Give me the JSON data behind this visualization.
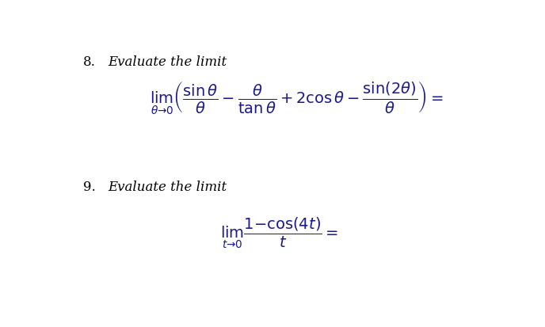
{
  "background_color": "#ffffff",
  "q8_number": "8.",
  "q8_label": "Evaluate the limit",
  "q8_formula": "$\\lim_{\\theta \\to 0} \\left( \\dfrac{\\sin\\theta}{\\theta} - \\dfrac{\\theta}{\\tan\\theta} + 2\\cos\\theta - \\dfrac{\\sin(2\\theta)}{\\theta} \\right) =$",
  "q9_number": "9.",
  "q9_label": "Evaluate the limit",
  "q9_formula": "$\\lim_{t \\to 0} \\dfrac{1 - \\cos(4t)}{t} =$",
  "text_color": "#1a1a8c",
  "label_color": "#000000",
  "number_color": "#000000",
  "fontsize_number": 12,
  "fontsize_label": 12,
  "fontsize_formula": 14
}
